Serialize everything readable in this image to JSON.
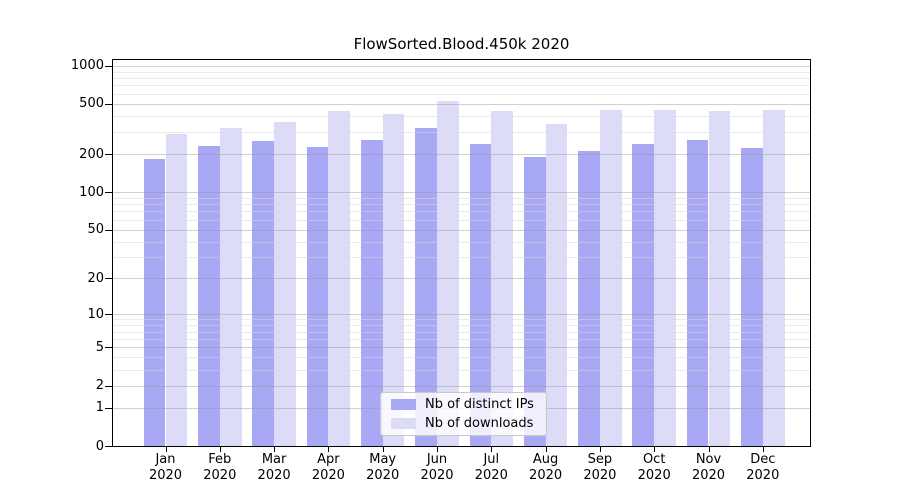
{
  "title": "FlowSorted.Blood.450k 2020",
  "colors": {
    "distinct_ips": "#a8a8f5",
    "downloads": "#dcdcf9",
    "grid_major": "rgba(150,150,150,0.45)",
    "grid_minor": "rgba(215,215,215,0.5)",
    "spine": "#000000"
  },
  "legend": {
    "items": [
      {
        "label": "Nb of distinct IPs",
        "color": "#a8a8f5"
      },
      {
        "label": "Nb of downloads",
        "color": "#dcdcf9"
      }
    ]
  },
  "chart_data": {
    "type": "bar",
    "title": "FlowSorted.Blood.450k 2020",
    "scale": "log1p",
    "grid": "both",
    "legend_position": "lower center",
    "categories": [
      "Jan 2020",
      "Feb 2020",
      "Mar 2020",
      "Apr 2020",
      "May 2020",
      "Jun 2020",
      "Jul 2020",
      "Aug 2020",
      "Sep 2020",
      "Oct 2020",
      "Nov 2020",
      "Dec 2020"
    ],
    "x_tick_months": [
      "Jan",
      "Feb",
      "Mar",
      "Apr",
      "May",
      "Jun",
      "Jul",
      "Aug",
      "Sep",
      "Oct",
      "Nov",
      "Dec"
    ],
    "x_tick_year": "2020",
    "series": [
      {
        "name": "Nb of distinct IPs",
        "color": "#a8a8f5",
        "values": [
          182,
          232,
          256,
          229,
          258,
          320,
          242,
          191,
          212,
          242,
          259,
          225
        ]
      },
      {
        "name": "Nb of downloads",
        "color": "#dcdcf9",
        "values": [
          287,
          324,
          360,
          437,
          418,
          525,
          437,
          345,
          445,
          448,
          439,
          445
        ]
      }
    ],
    "y_ticks": [
      0,
      1,
      2,
      5,
      10,
      20,
      50,
      100,
      200,
      500,
      1000
    ],
    "y_minor_gridlines": [
      3,
      4,
      6,
      7,
      8,
      9,
      30,
      40,
      60,
      70,
      80,
      90,
      300,
      400,
      600,
      700,
      800,
      900
    ],
    "ylim": [
      0,
      1113
    ],
    "xlabel": "",
    "ylabel": ""
  }
}
